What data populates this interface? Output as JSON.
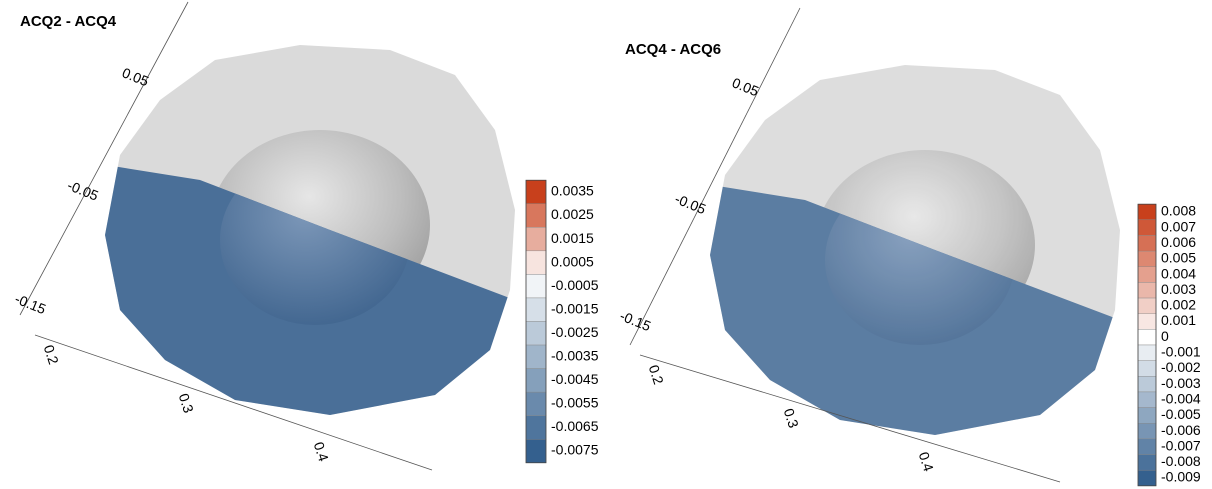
{
  "chart_data": [
    {
      "type": "contour",
      "title": "ACQ2 - ACQ4",
      "xticks": [
        0.2,
        0.3,
        0.4
      ],
      "yticks": [
        0.05,
        -0.05,
        -0.15
      ],
      "colormap": [
        "#34608e",
        "#ffffff",
        "#c8401c"
      ],
      "colorbar": [
        0.0035,
        0.0025,
        0.0015,
        0.0005,
        -0.0005,
        -0.0015,
        -0.0025,
        -0.0035,
        -0.0045,
        -0.0055,
        -0.0065,
        -0.0075
      ]
    },
    {
      "type": "contour",
      "title": "ACQ4 - ACQ6",
      "xticks": [
        0.2,
        0.3,
        0.4
      ],
      "yticks": [
        0.05,
        -0.05,
        -0.15
      ],
      "colormap": [
        "#34608e",
        "#ffffff",
        "#c8401c"
      ],
      "colorbar": [
        0.008,
        0.007,
        0.006,
        0.005,
        0.004,
        0.003,
        0.002,
        0.001,
        0,
        -0.001,
        -0.002,
        -0.003,
        -0.004,
        -0.005,
        -0.006,
        -0.007,
        -0.008,
        -0.009
      ]
    }
  ]
}
